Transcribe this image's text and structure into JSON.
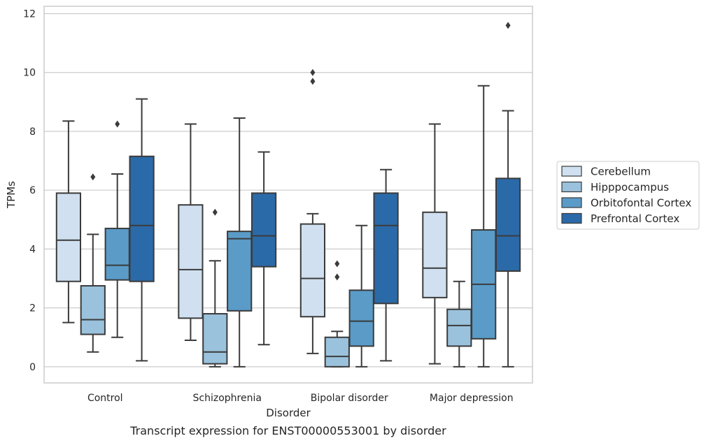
{
  "chart_data": {
    "type": "box",
    "title": "",
    "caption": "Transcript expression for ENST00000553001 by disorder",
    "xlabel": "Disorder",
    "ylabel": "TPMs",
    "ylim": [
      -0.55,
      12.25
    ],
    "yticks": [
      0,
      2,
      4,
      6,
      8,
      10,
      12
    ],
    "grid": "horizontal",
    "legend_position": "right",
    "categories": [
      "Control",
      "Schizophrenia",
      "Bipolar disorder",
      "Major depression"
    ],
    "series": [
      {
        "name": "Cerebellum",
        "color": "#d0e0f0",
        "boxes": [
          {
            "whislo": 1.5,
            "q1": 2.9,
            "med": 4.3,
            "q3": 5.9,
            "whishi": 8.35,
            "fliers": []
          },
          {
            "whislo": 0.9,
            "q1": 1.65,
            "med": 3.3,
            "q3": 5.5,
            "whishi": 8.25,
            "fliers": []
          },
          {
            "whislo": 0.45,
            "q1": 1.7,
            "med": 3.0,
            "q3": 4.85,
            "whishi": 5.2,
            "fliers": [
              9.7,
              10.0
            ]
          },
          {
            "whislo": 0.1,
            "q1": 2.35,
            "med": 3.35,
            "q3": 5.25,
            "whishi": 8.25,
            "fliers": []
          }
        ]
      },
      {
        "name": "Hipppocampus",
        "color": "#9ac2dd",
        "boxes": [
          {
            "whislo": 0.5,
            "q1": 1.1,
            "med": 1.6,
            "q3": 2.75,
            "whishi": 4.5,
            "fliers": [
              6.45
            ]
          },
          {
            "whislo": 0.0,
            "q1": 0.1,
            "med": 0.5,
            "q3": 1.8,
            "whishi": 3.6,
            "fliers": [
              5.25
            ]
          },
          {
            "whislo": 0.0,
            "q1": 0.0,
            "med": 0.35,
            "q3": 1.0,
            "whishi": 1.2,
            "fliers": [
              3.05,
              3.5
            ]
          },
          {
            "whislo": 0.0,
            "q1": 0.7,
            "med": 1.4,
            "q3": 1.95,
            "whishi": 2.9,
            "fliers": []
          }
        ]
      },
      {
        "name": "Orbitofontal Cortex",
        "color": "#5a9bc8",
        "boxes": [
          {
            "whislo": 1.0,
            "q1": 2.95,
            "med": 3.45,
            "q3": 4.7,
            "whishi": 6.55,
            "fliers": [
              8.25
            ]
          },
          {
            "whislo": 0.0,
            "q1": 1.9,
            "med": 4.35,
            "q3": 4.6,
            "whishi": 8.45,
            "fliers": []
          },
          {
            "whislo": 0.0,
            "q1": 0.7,
            "med": 1.55,
            "q3": 2.6,
            "whishi": 4.8,
            "fliers": []
          },
          {
            "whislo": 0.0,
            "q1": 0.95,
            "med": 2.8,
            "q3": 4.65,
            "whishi": 9.55,
            "fliers": []
          }
        ]
      },
      {
        "name": "Prefrontal Cortex",
        "color": "#2b6aa8",
        "boxes": [
          {
            "whislo": 0.2,
            "q1": 2.9,
            "med": 4.8,
            "q3": 7.15,
            "whishi": 9.1,
            "fliers": []
          },
          {
            "whislo": 0.75,
            "q1": 3.4,
            "med": 4.45,
            "q3": 5.9,
            "whishi": 7.3,
            "fliers": []
          },
          {
            "whislo": 0.2,
            "q1": 2.15,
            "med": 4.8,
            "q3": 5.9,
            "whishi": 6.7,
            "fliers": []
          },
          {
            "whislo": 0.0,
            "q1": 3.25,
            "med": 4.45,
            "q3": 6.4,
            "whishi": 8.7,
            "fliers": [
              11.6
            ]
          }
        ]
      }
    ]
  }
}
